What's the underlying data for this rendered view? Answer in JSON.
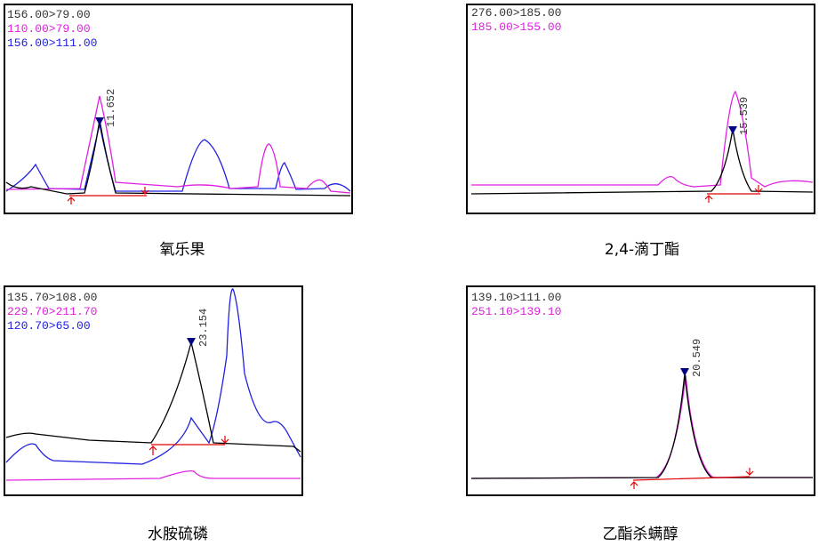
{
  "panels": [
    {
      "legend": [
        "156.00>79.00",
        "110.00>79.00",
        "156.00>111.00"
      ],
      "peak_label": "11.652",
      "caption": "氧乐果"
    },
    {
      "legend": [
        "276.00>185.00",
        "185.00>155.00"
      ],
      "peak_label": "15.539",
      "caption": "2,4-滴丁酯"
    },
    {
      "legend": [
        "135.70>108.00",
        "229.70>211.70",
        "120.70>65.00"
      ],
      "peak_label": "23.154",
      "caption": "水胺硫磷"
    },
    {
      "legend": [
        "139.10>111.00",
        "251.10>139.10"
      ],
      "peak_label": "20.549",
      "caption": "乙酯杀螨醇"
    }
  ]
}
